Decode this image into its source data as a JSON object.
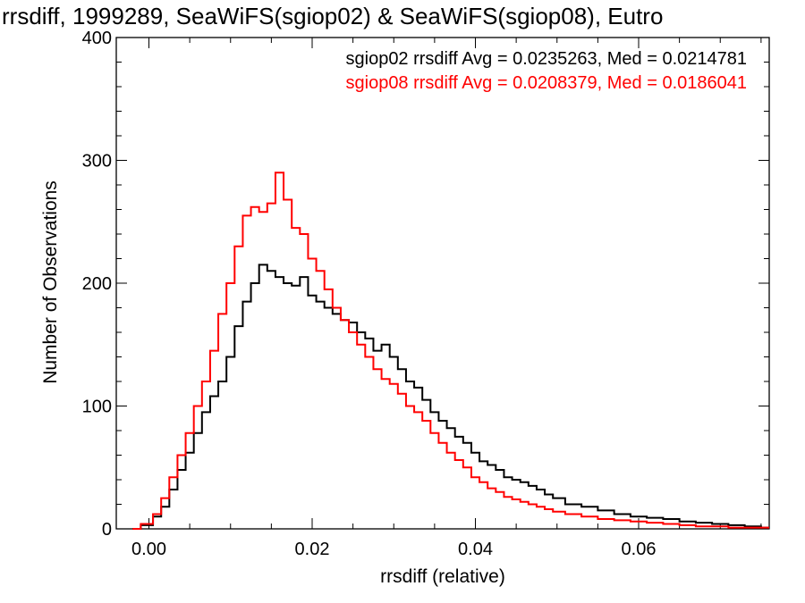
{
  "chart_data": {
    "type": "line",
    "title": "rrsdiff, 1999289, SeaWiFS(sgiop02) & SeaWiFS(sgiop08), Eutro",
    "xlabel": "rrsdiff (relative)",
    "ylabel": "Number of Observations",
    "xlim": [
      -0.004,
      0.076
    ],
    "ylim": [
      0,
      400
    ],
    "x_ticks": [
      {
        "value": 0.0,
        "label": "0.00"
      },
      {
        "value": 0.02,
        "label": "0.02"
      },
      {
        "value": 0.04,
        "label": "0.04"
      },
      {
        "value": 0.06,
        "label": "0.06"
      }
    ],
    "y_ticks": [
      {
        "value": 0,
        "label": "0"
      },
      {
        "value": 100,
        "label": "100"
      },
      {
        "value": 200,
        "label": "200"
      },
      {
        "value": 300,
        "label": "300"
      },
      {
        "value": 400,
        "label": "400"
      }
    ],
    "grid": false,
    "step_style": "histogram",
    "annotations": [
      {
        "text": "sgiop02 rrsdiff Avg = 0.0235263, Med = 0.0214781",
        "color": "#000000",
        "position": "top-right"
      },
      {
        "text": "sgiop08 rrsdiff Avg = 0.0208379, Med = 0.0186041",
        "color": "#ff0000",
        "position": "top-right"
      }
    ],
    "series": [
      {
        "color": "#000000",
        "x": [
          -0.002,
          0.0,
          0.001,
          0.002,
          0.003,
          0.004,
          0.005,
          0.006,
          0.007,
          0.008,
          0.009,
          0.01,
          0.011,
          0.012,
          0.013,
          0.014,
          0.015,
          0.016,
          0.017,
          0.018,
          0.019,
          0.02,
          0.021,
          0.022,
          0.023,
          0.024,
          0.025,
          0.026,
          0.027,
          0.028,
          0.029,
          0.03,
          0.031,
          0.032,
          0.033,
          0.034,
          0.035,
          0.036,
          0.037,
          0.038,
          0.039,
          0.04,
          0.041,
          0.042,
          0.043,
          0.044,
          0.045,
          0.046,
          0.047,
          0.048,
          0.049,
          0.05,
          0.052,
          0.054,
          0.056,
          0.058,
          0.06,
          0.062,
          0.064,
          0.066,
          0.068,
          0.07,
          0.072,
          0.074,
          0.076
        ],
        "y": [
          0,
          3,
          10,
          18,
          32,
          48,
          62,
          78,
          95,
          108,
          120,
          140,
          165,
          185,
          200,
          215,
          210,
          205,
          200,
          198,
          205,
          190,
          185,
          180,
          175,
          170,
          168,
          160,
          155,
          145,
          150,
          140,
          130,
          120,
          115,
          105,
          95,
          88,
          82,
          75,
          70,
          62,
          55,
          52,
          48,
          42,
          40,
          38,
          35,
          32,
          28,
          25,
          20,
          18,
          15,
          12,
          10,
          9,
          8,
          6,
          5,
          4,
          3,
          2,
          1
        ]
      },
      {
        "color": "#ff0000",
        "x": [
          -0.002,
          0.0,
          0.001,
          0.002,
          0.003,
          0.004,
          0.005,
          0.006,
          0.007,
          0.008,
          0.009,
          0.01,
          0.011,
          0.012,
          0.013,
          0.014,
          0.015,
          0.016,
          0.017,
          0.018,
          0.019,
          0.02,
          0.021,
          0.022,
          0.023,
          0.024,
          0.025,
          0.026,
          0.027,
          0.028,
          0.029,
          0.03,
          0.031,
          0.032,
          0.033,
          0.034,
          0.035,
          0.036,
          0.037,
          0.038,
          0.039,
          0.04,
          0.041,
          0.042,
          0.043,
          0.044,
          0.045,
          0.046,
          0.047,
          0.048,
          0.049,
          0.05,
          0.052,
          0.054,
          0.056,
          0.058,
          0.06,
          0.062,
          0.064,
          0.066,
          0.068,
          0.07,
          0.072,
          0.074,
          0.076
        ],
        "y": [
          0,
          4,
          12,
          25,
          42,
          60,
          78,
          100,
          120,
          145,
          175,
          200,
          230,
          255,
          262,
          258,
          265,
          290,
          268,
          245,
          240,
          220,
          210,
          195,
          180,
          170,
          160,
          150,
          140,
          130,
          122,
          118,
          110,
          100,
          95,
          88,
          78,
          70,
          62,
          56,
          50,
          42,
          38,
          33,
          30,
          26,
          24,
          22,
          20,
          18,
          16,
          14,
          12,
          10,
          8,
          7,
          6,
          5,
          4,
          3,
          2,
          2,
          1,
          1,
          1
        ]
      }
    ]
  }
}
